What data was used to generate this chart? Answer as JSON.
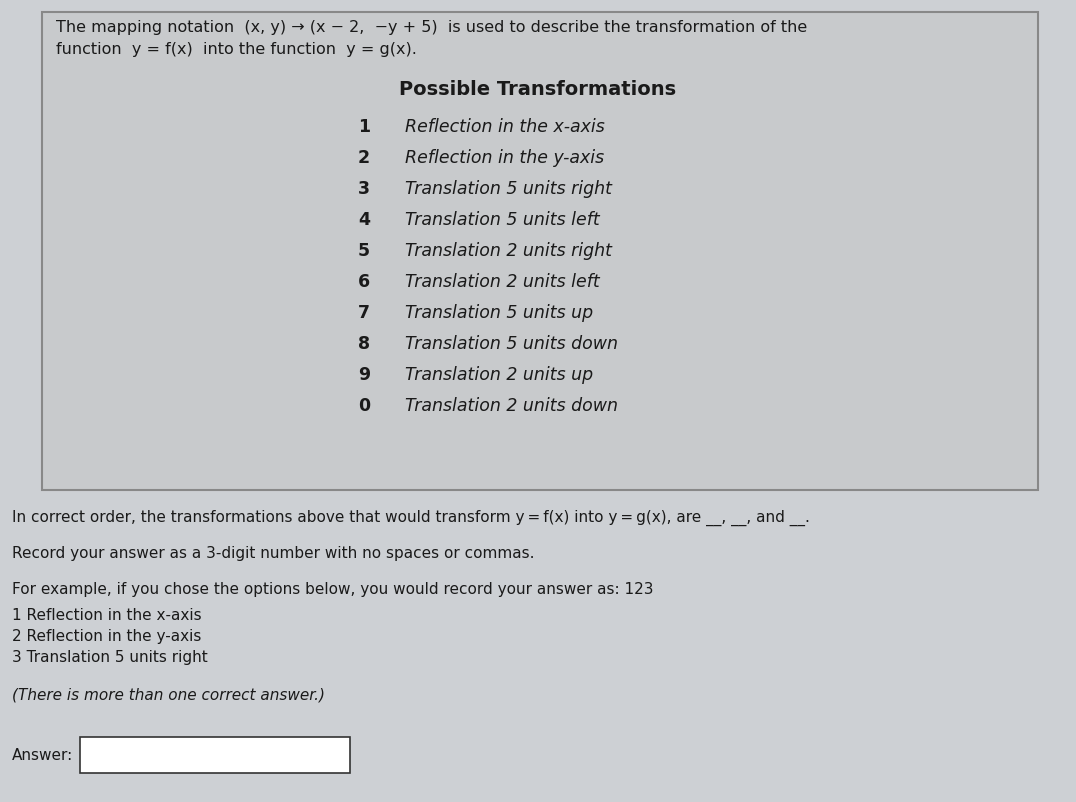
{
  "bg_color": "#cdd0d4",
  "box_bg_color": "#c8cacc",
  "box_border_color": "#888888",
  "header_line1": "The mapping notation  (x, y) → (x − 2,  −y + 5)  is used to describe the transformation of the",
  "header_line2": "function  y = f(x)  into the function  y = g(x).",
  "section_title": "Possible Transformations",
  "items": [
    {
      "num": "1",
      "desc": "Reflection in the x-axis"
    },
    {
      "num": "2",
      "desc": "Reflection in the y-axis"
    },
    {
      "num": "3",
      "desc": "Translation 5 units right"
    },
    {
      "num": "4",
      "desc": "Translation 5 units left"
    },
    {
      "num": "5",
      "desc": "Translation 2 units right"
    },
    {
      "num": "6",
      "desc": "Translation 2 units left"
    },
    {
      "num": "7",
      "desc": "Translation 5 units up"
    },
    {
      "num": "8",
      "desc": "Translation 5 units down"
    },
    {
      "num": "9",
      "desc": "Translation 2 units up"
    },
    {
      "num": "0",
      "desc": "Translation 2 units down"
    }
  ],
  "q_line_prefix": "In correct order, the transformations above that would transform ",
  "q_line_fx": "y = f(x)",
  "q_line_mid": " into ",
  "q_line_gx": "y = g(x)",
  "q_line_suffix": ", are __, __, and __.",
  "record_line": "Record your answer as a 3-digit number with no spaces or commas.",
  "example_line": "For example, if you chose the options below, you would record your answer as: 123",
  "example_items": [
    "1 Reflection in the x-axis",
    "2 Reflection in the y-axis",
    "3 Translation 5 units right"
  ],
  "note_line": "(There is more than one correct answer.)",
  "answer_label": "Answer:",
  "text_color": "#1a1a1a",
  "box_text_color": "#1a1a1a",
  "item_italic_color": "#1a1a1a"
}
